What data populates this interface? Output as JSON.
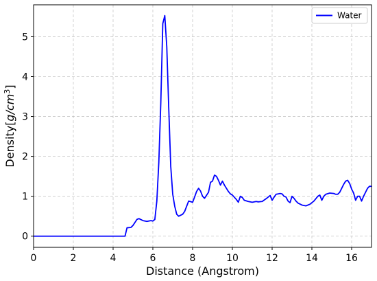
{
  "chart_data": {
    "type": "line",
    "title": "",
    "xlabel": "Distance (Angstrom)",
    "ylabel_main": "Density[",
    "ylabel_units": "g/cm",
    "ylabel_exp": "3",
    "ylabel_close": "]",
    "xlim": [
      0,
      17
    ],
    "ylim": [
      -0.28,
      5.8
    ],
    "xticks": [
      0,
      2,
      4,
      6,
      8,
      10,
      12,
      14,
      16
    ],
    "yticks": [
      0,
      1,
      2,
      3,
      4,
      5
    ],
    "grid": true,
    "legend_position": "top-right",
    "series": [
      {
        "name": "Water",
        "color": "#0000ff",
        "x": [
          0.0,
          4.6,
          4.7,
          4.9,
          5.0,
          5.2,
          5.3,
          5.5,
          5.7,
          5.9,
          6.0,
          6.1,
          6.2,
          6.3,
          6.4,
          6.5,
          6.6,
          6.7,
          6.8,
          6.9,
          7.0,
          7.1,
          7.2,
          7.3,
          7.5,
          7.6,
          7.8,
          8.0,
          8.1,
          8.2,
          8.3,
          8.4,
          8.5,
          8.6,
          8.8,
          8.9,
          9.0,
          9.1,
          9.2,
          9.3,
          9.4,
          9.5,
          9.6,
          9.7,
          9.8,
          9.9,
          10.0,
          10.2,
          10.3,
          10.4,
          10.5,
          10.6,
          10.8,
          11.0,
          11.2,
          11.3,
          11.5,
          11.7,
          11.9,
          12.0,
          12.1,
          12.2,
          12.3,
          12.4,
          12.5,
          12.6,
          12.7,
          12.8,
          12.9,
          13.0,
          13.1,
          13.2,
          13.3,
          13.5,
          13.7,
          13.9,
          14.1,
          14.3,
          14.4,
          14.5,
          14.6,
          14.7,
          14.9,
          15.1,
          15.2,
          15.3,
          15.4,
          15.5,
          15.6,
          15.7,
          15.8,
          15.9,
          16.0,
          16.1,
          16.2,
          16.3,
          16.4,
          16.5,
          16.6,
          16.7,
          16.8,
          16.9,
          17.0
        ],
        "y": [
          0.0,
          0.0,
          0.21,
          0.22,
          0.27,
          0.42,
          0.44,
          0.39,
          0.37,
          0.39,
          0.38,
          0.42,
          0.88,
          1.85,
          3.35,
          5.33,
          5.53,
          4.75,
          3.2,
          1.75,
          1.05,
          0.75,
          0.55,
          0.5,
          0.55,
          0.62,
          0.88,
          0.85,
          0.98,
          1.12,
          1.2,
          1.13,
          1.0,
          0.95,
          1.1,
          1.35,
          1.38,
          1.53,
          1.5,
          1.4,
          1.28,
          1.38,
          1.28,
          1.2,
          1.12,
          1.06,
          1.03,
          0.92,
          0.85,
          1.0,
          0.97,
          0.9,
          0.87,
          0.85,
          0.87,
          0.86,
          0.87,
          0.94,
          1.02,
          0.9,
          0.98,
          1.05,
          1.06,
          1.07,
          1.06,
          1.0,
          0.98,
          0.88,
          0.84,
          1.0,
          0.95,
          0.88,
          0.83,
          0.78,
          0.76,
          0.8,
          0.88,
          1.0,
          1.03,
          0.9,
          1.0,
          1.05,
          1.08,
          1.07,
          1.05,
          1.05,
          1.1,
          1.2,
          1.3,
          1.38,
          1.4,
          1.32,
          1.18,
          1.08,
          0.9,
          1.0,
          1.0,
          0.88,
          1.0,
          1.1,
          1.2,
          1.25,
          1.25
        ]
      }
    ]
  }
}
